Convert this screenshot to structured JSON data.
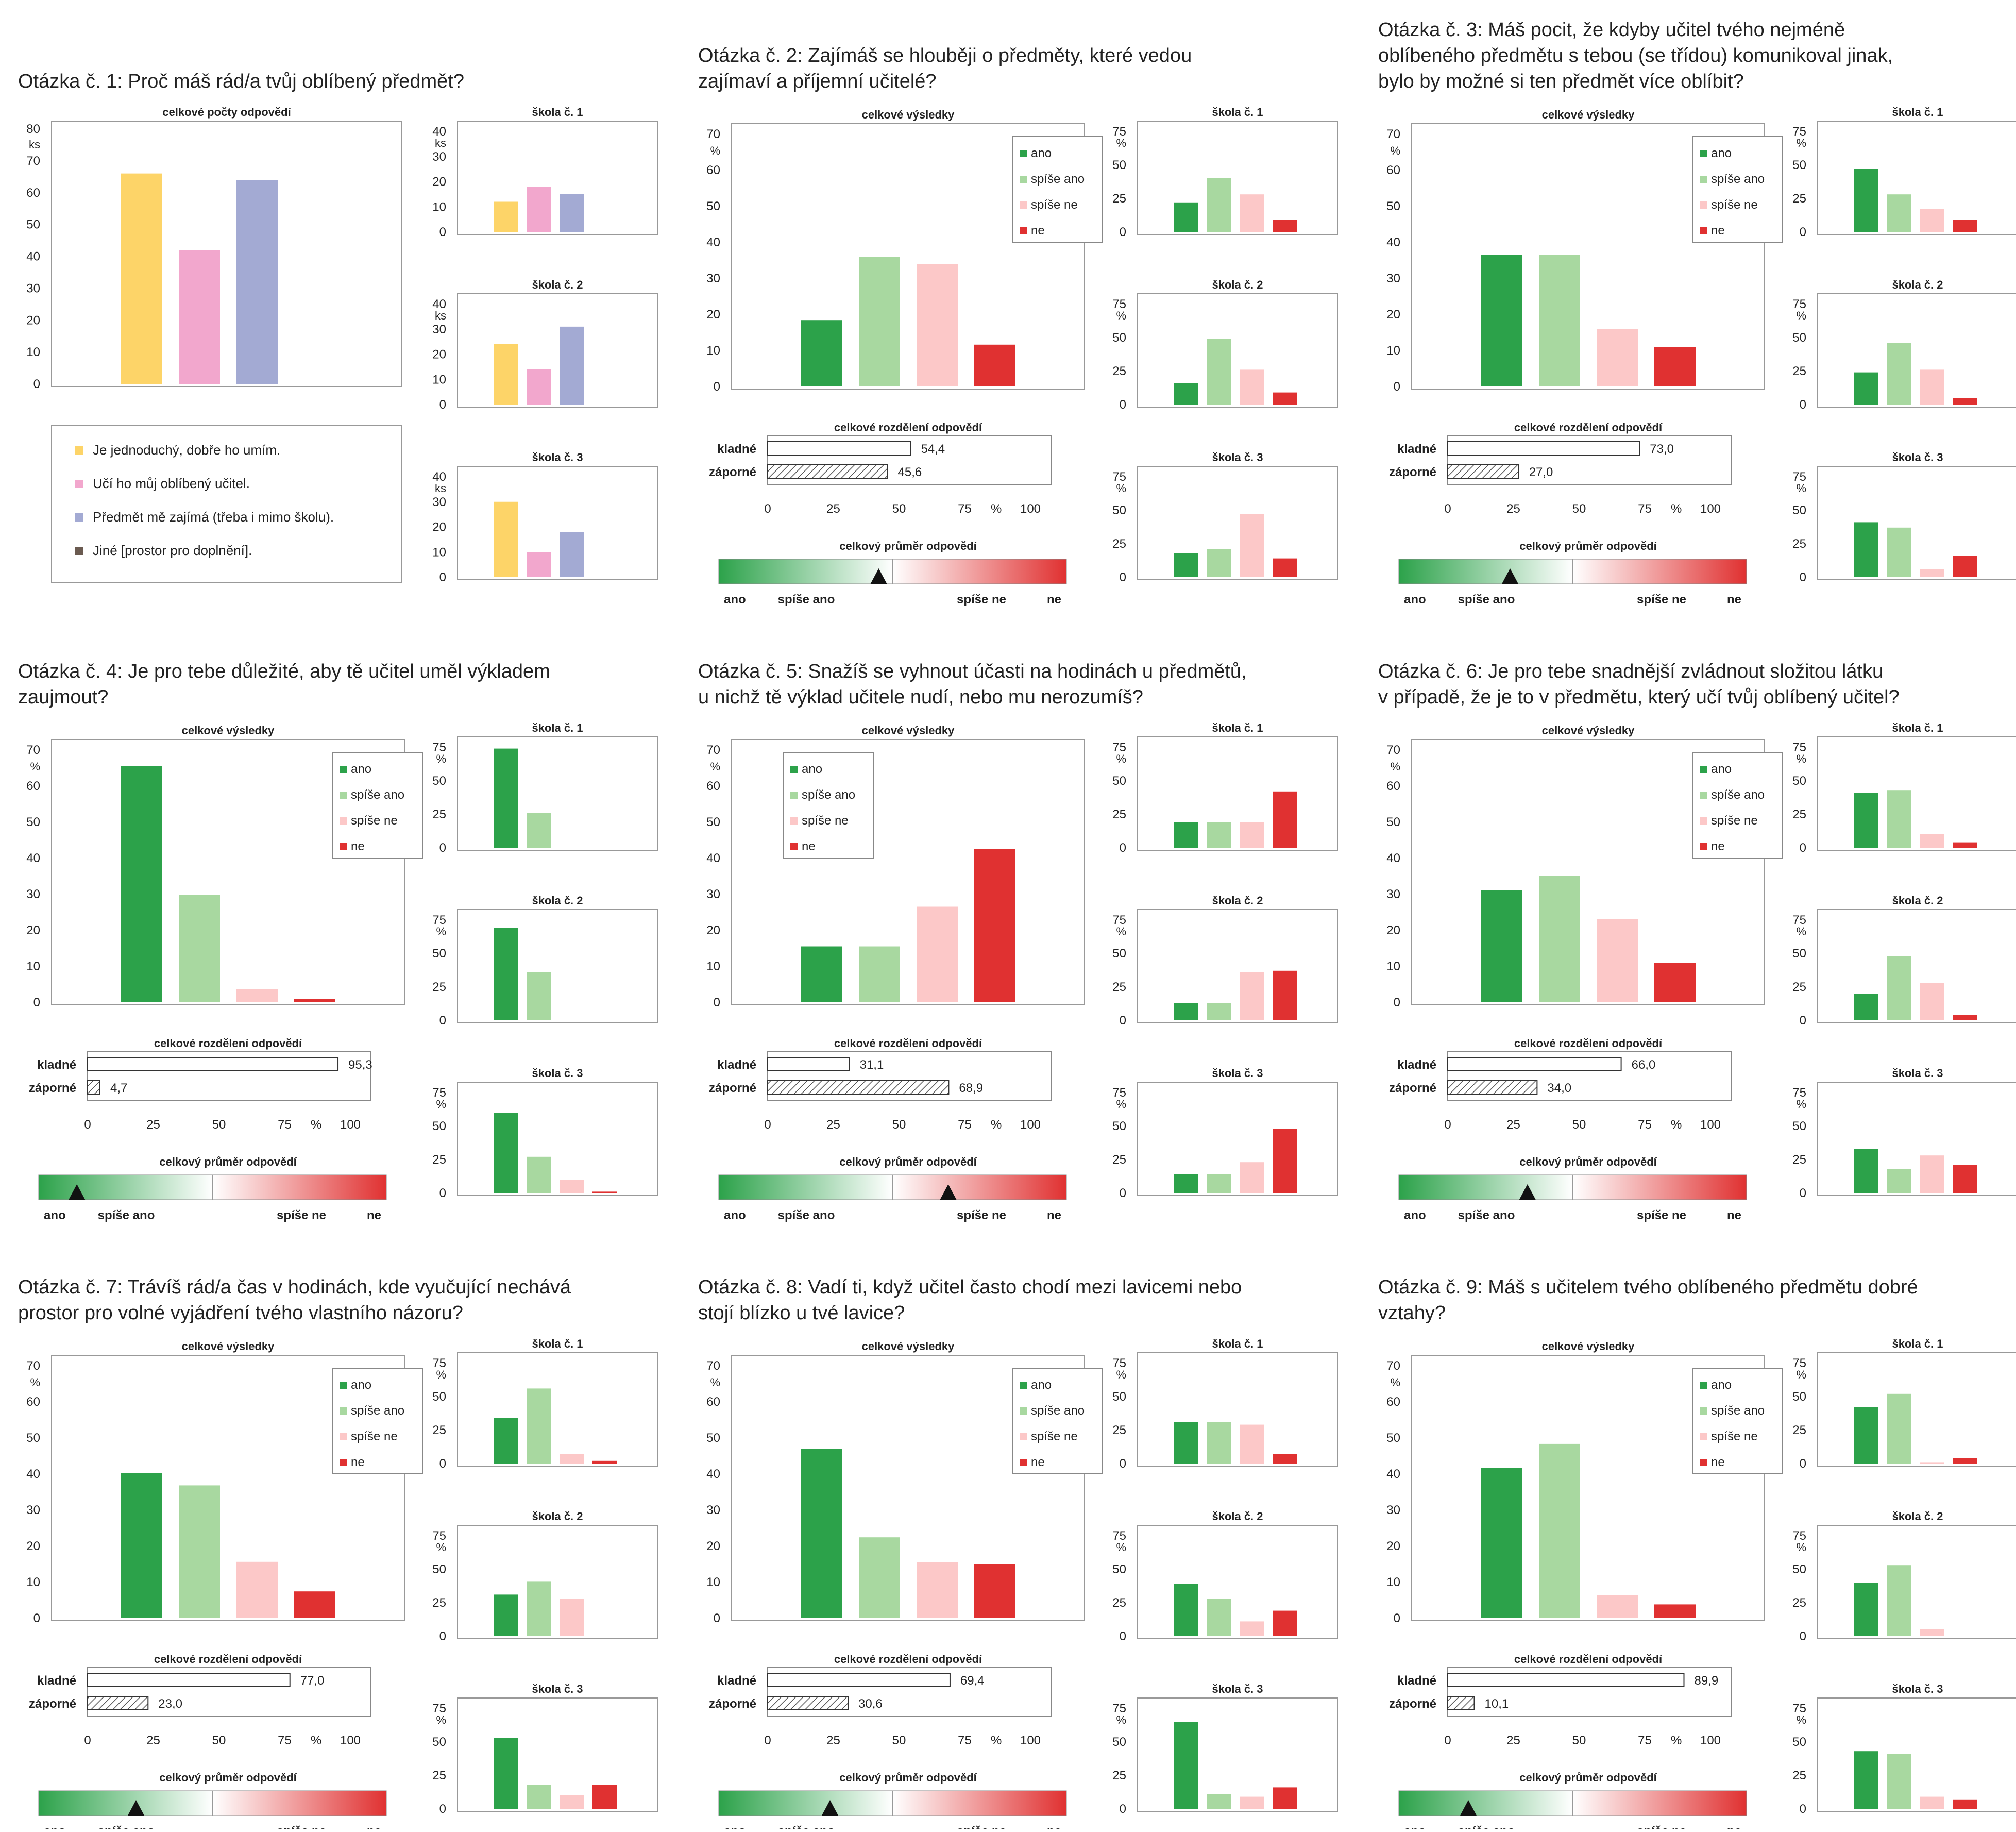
{
  "colors": {
    "ano": "#2ca24a",
    "spise_ano": "#a8d8a0",
    "spise_ne": "#fcc8c8",
    "ne": "#e03131",
    "q1_jednoduchy": "#fdd468",
    "q1_ucitel": "#f2a7cd",
    "q1_zajima": "#a3aad3",
    "q1_jine": "#6a5a50",
    "bar_outline": "#999999"
  },
  "labels": {
    "celkove_vysledky": "celkové výsledky",
    "celkove_pocty": "celkové počty odpovědí",
    "celkove_rozdeleni": "celkové rozdělení odpovědí",
    "celkovy_prumer": "celkový průměr odpovědí",
    "kladne": "kladné",
    "zaporne": "záporné",
    "unit_pct": "%",
    "unit_ks": "ks",
    "dist_ticks": [
      "0",
      "25",
      "50",
      "75",
      "%",
      "100"
    ],
    "scale_labels": [
      "ano",
      "spíše ano",
      "spíše ne",
      "ne"
    ],
    "schools": [
      "škola č. 1",
      "škola č. 2",
      "škola č. 3"
    ],
    "legend": [
      "ano",
      "spíše ano",
      "spíše ne",
      "ne"
    ]
  },
  "questions": [
    {
      "title_lines": [
        "Otázka č. 1: Proč máš rád/a tvůj oblíbený předmět?"
      ],
      "chart_data": {
        "type": "bar",
        "title": "celkové počty odpovědí",
        "ylabel": "ks",
        "ylim": [
          0,
          80
        ],
        "yticks": [
          0,
          10,
          20,
          30,
          40,
          50,
          60,
          70,
          80
        ],
        "categories": [
          "Je jednoduchý, dobře ho umím.",
          "Učí ho můj oblíbený učitel.",
          "Předmět mě zajímá (třeba i mimo školu).",
          "Jiné [prostor pro doplnění]."
        ],
        "values": [
          66,
          42,
          64,
          0
        ],
        "schools": [
          {
            "name": "škola č. 1",
            "values": [
              12,
              18,
              15,
              0
            ],
            "ylim": [
              0,
              40
            ],
            "yticks": [
              0,
              10,
              20,
              30,
              40
            ]
          },
          {
            "name": "škola č. 2",
            "values": [
              24,
              14,
              31,
              0
            ],
            "ylim": [
              0,
              40
            ],
            "yticks": [
              0,
              10,
              20,
              30,
              40
            ]
          },
          {
            "name": "škola č. 3",
            "values": [
              30,
              10,
              18,
              0
            ],
            "ylim": [
              0,
              40
            ],
            "yticks": [
              0,
              10,
              20,
              30,
              40
            ]
          }
        ]
      }
    },
    {
      "title_lines": [
        "Otázka č. 2: Zajímáš se hlouběji o předměty, které vedou",
        "zajímaví a příjemní učitelé?"
      ],
      "chart_data": {
        "type": "bar",
        "title": "celkové výsledky",
        "ylim": [
          0,
          70
        ],
        "legend_pos": "top-right",
        "categories": [
          "ano",
          "spíše ano",
          "spíše ne",
          "ne"
        ],
        "values": [
          18.4,
          36,
          34,
          11.6
        ],
        "schools": [
          [
            22,
            40,
            28,
            9
          ],
          [
            16,
            49,
            26,
            9
          ],
          [
            18,
            21,
            47,
            14
          ]
        ],
        "distribution": {
          "kladne": "54,4",
          "zaporne": "45,6",
          "kladne_value": 54.4,
          "zaporne_value": 45.6
        },
        "mean_position": 0.46
      }
    },
    {
      "title_lines": [
        "Otázka č. 3: Máš pocit, že kdyby učitel tvého nejméně",
        "oblíbeného předmětu s tebou (se třídou) komunikoval jinak,",
        "bylo by možné si ten předmět více oblíbit?"
      ],
      "chart_data": {
        "type": "bar",
        "title": "celkové výsledky",
        "ylim": [
          0,
          70
        ],
        "legend_pos": "top-right",
        "categories": [
          "ano",
          "spíše ano",
          "spíše ne",
          "ne"
        ],
        "values": [
          36.5,
          36.5,
          16,
          11
        ],
        "schools": [
          [
            47,
            28,
            17,
            9
          ],
          [
            24,
            46,
            26,
            5
          ],
          [
            41,
            37,
            6,
            16
          ]
        ],
        "distribution": {
          "kladne": "73,0",
          "zaporne": "27,0",
          "kladne_value": 73.0,
          "zaporne_value": 27.0
        },
        "mean_position": 0.32
      }
    },
    {
      "title_lines": [
        "Otázka č. 4: Je pro tebe důležité, aby tě učitel uměl výkladem",
        "zaujmout?"
      ],
      "chart_data": {
        "type": "bar",
        "title": "celkové výsledky",
        "ylim": [
          0,
          70
        ],
        "legend_pos": "top-right",
        "categories": [
          "ano",
          "spíše ano",
          "spíše ne",
          "ne"
        ],
        "values": [
          65.5,
          29.8,
          3.7,
          0.9
        ],
        "schools": [
          [
            74,
            26,
            0,
            0
          ],
          [
            69,
            36,
            0,
            0
          ],
          [
            60,
            27,
            10,
            1
          ]
        ],
        "distribution": {
          "kladne": "95,3",
          "zaporne": "4,7",
          "kladne_value": 95.3,
          "zaporne_value": 4.7
        },
        "mean_position": 0.11
      }
    },
    {
      "title_lines": [
        "Otázka č. 5: Snažíš se vyhnout účasti na hodinách u předmětů,",
        "u nichž tě výklad učitele nudí, nebo mu nerozumíš?"
      ],
      "chart_data": {
        "type": "bar",
        "title": "celkové výsledky",
        "ylim": [
          0,
          70
        ],
        "legend_pos": "top-left",
        "categories": [
          "ano",
          "spíše ano",
          "spíše ne",
          "ne"
        ],
        "values": [
          15.5,
          15.5,
          26.5,
          42.5
        ],
        "schools": [
          [
            19,
            19,
            19,
            42
          ],
          [
            13,
            13,
            36,
            37
          ],
          [
            14,
            14,
            23,
            48
          ]
        ],
        "distribution": {
          "kladne": "31,1",
          "zaporne": "68,9",
          "kladne_value": 31.1,
          "zaporne_value": 68.9
        },
        "mean_position": 0.66
      }
    },
    {
      "title_lines": [
        "Otázka č. 6: Je pro tebe snadnější zvládnout složitou látku",
        "v případě, že je to v předmětu, který učí tvůj oblíbený učitel?"
      ],
      "chart_data": {
        "type": "bar",
        "title": "celkové výsledky",
        "ylim": [
          0,
          70
        ],
        "legend_pos": "top-right",
        "categories": [
          "ano",
          "spíše ano",
          "spíše ne",
          "ne"
        ],
        "values": [
          31,
          35,
          23,
          11
        ],
        "schools": [
          [
            41,
            43,
            10,
            4
          ],
          [
            20,
            48,
            28,
            4
          ],
          [
            33,
            18,
            28,
            21
          ]
        ],
        "distribution": {
          "kladne": "66,0",
          "zaporne": "34,0",
          "kladne_value": 66.0,
          "zaporne_value": 34.0
        },
        "mean_position": 0.37
      }
    },
    {
      "title_lines": [
        "Otázka č. 7: Trávíš rád/a čas v hodinách, kde vyučující nechává",
        "prostor pro volné vyjádření tvého vlastního názoru?"
      ],
      "chart_data": {
        "type": "bar",
        "title": "celkové výsledky",
        "ylim": [
          0,
          70
        ],
        "legend_pos": "top-right",
        "categories": [
          "ano",
          "spíše ano",
          "spíše ne",
          "ne"
        ],
        "values": [
          40.2,
          36.8,
          15.6,
          7.4
        ],
        "schools": [
          [
            34,
            56,
            7,
            2
          ],
          [
            31,
            41,
            28,
            0
          ],
          [
            53,
            18,
            10,
            18
          ]
        ],
        "distribution": {
          "kladne": "77,0",
          "zaporne": "23,0",
          "kladne_value": 77.0,
          "zaporne_value": 23.0
        },
        "mean_position": 0.28
      }
    },
    {
      "title_lines": [
        "Otázka č. 8: Vadí ti, když učitel často chodí mezi lavicemi nebo",
        "stojí blízko u tvé lavice?"
      ],
      "chart_data": {
        "type": "bar",
        "title": "celkové výsledky",
        "ylim": [
          0,
          70
        ],
        "legend_pos": "top-right",
        "categories": [
          "ano",
          "spíše ano",
          "spíše ne",
          "ne"
        ],
        "values": [
          47,
          22.4,
          15.5,
          15.1
        ],
        "schools": [
          [
            31,
            31,
            29,
            7
          ],
          [
            39,
            28,
            11,
            19
          ],
          [
            65,
            11,
            9,
            16
          ]
        ],
        "distribution": {
          "kladne": "69,4",
          "zaporne": "30,6",
          "kladne_value": 69.4,
          "zaporne_value": 30.6
        },
        "mean_position": 0.32
      }
    },
    {
      "title_lines": [
        "Otázka č. 9: Máš s učitelem tvého oblíbeného předmětu dobré",
        "vztahy?"
      ],
      "chart_data": {
        "type": "bar",
        "title": "celkové výsledky",
        "ylim": [
          0,
          70
        ],
        "legend_pos": "top-right",
        "categories": [
          "ano",
          "spíše ano",
          "spíše ne",
          "ne"
        ],
        "values": [
          41.6,
          48.3,
          6.3,
          3.8
        ],
        "schools": [
          [
            42,
            52,
            1,
            4
          ],
          [
            40,
            53,
            5,
            0
          ],
          [
            43,
            41,
            9,
            7
          ]
        ],
        "distribution": {
          "kladne": "89,9",
          "zaporne": "10,1",
          "kladne_value": 89.9,
          "zaporne_value": 10.1
        },
        "mean_position": 0.2
      }
    }
  ]
}
